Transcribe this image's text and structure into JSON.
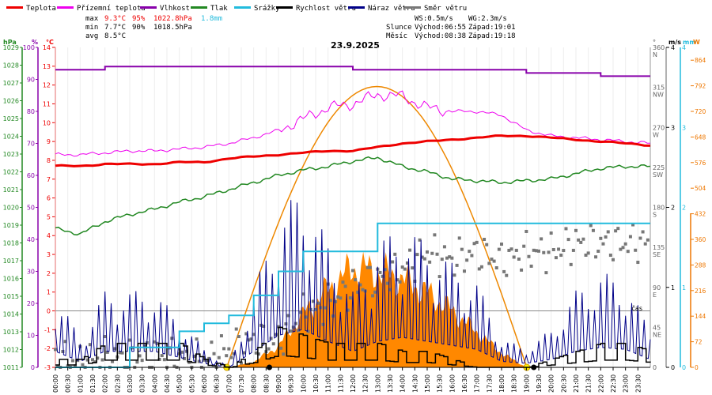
{
  "chart_data": {
    "type": "line",
    "title": "23.9.2025",
    "x_axis": {
      "label": "čas",
      "ticks": [
        "00:00",
        "00:30",
        "01:00",
        "01:30",
        "02:00",
        "02:30",
        "03:00",
        "03:30",
        "04:00",
        "04:30",
        "05:00",
        "05:30",
        "06:00",
        "06:30",
        "07:00",
        "07:30",
        "08:00",
        "08:30",
        "09:00",
        "09:30",
        "10:00",
        "10:30",
        "11:00",
        "11:30",
        "12:00",
        "12:30",
        "13:00",
        "13:30",
        "14:00",
        "14:30",
        "15:00",
        "15:30",
        "16:00",
        "16:30",
        "17:00",
        "17:30",
        "18:00",
        "18:30",
        "19:00",
        "19:30",
        "20:00",
        "20:30",
        "21:00",
        "21:30",
        "22:00",
        "22:30",
        "23:00",
        "23:30"
      ]
    },
    "axes": {
      "pressure": {
        "unit": "hPa",
        "range": [
          1011,
          1029
        ],
        "ticks": [
          1011,
          1012,
          1013,
          1014,
          1015,
          1016,
          1017,
          1018,
          1019,
          1020,
          1021,
          1022,
          1023,
          1024,
          1025,
          1026,
          1027,
          1028,
          1029
        ]
      },
      "humidity": {
        "unit": "%",
        "range": [
          0,
          100
        ],
        "ticks": [
          0,
          10,
          20,
          30,
          40,
          50,
          60,
          70,
          80,
          90,
          100
        ]
      },
      "temperature": {
        "unit": "°C",
        "range": [
          -3,
          14
        ],
        "ticks": [
          -3,
          -2,
          -1,
          0,
          1,
          2,
          3,
          4,
          5,
          6,
          7,
          8,
          9,
          10,
          11,
          12,
          13,
          14
        ]
      },
      "direction": {
        "unit": "°",
        "range": [
          0,
          360
        ],
        "ticks": [
          {
            "deg": "360",
            "dir": "N"
          },
          {
            "deg": "315",
            "dir": "NW"
          },
          {
            "deg": "270",
            "dir": "W"
          },
          {
            "deg": "225",
            "dir": "SW"
          },
          {
            "deg": "180",
            "dir": "S"
          },
          {
            "deg": "135",
            "dir": "SE"
          },
          {
            "deg": "90",
            "dir": "E"
          },
          {
            "deg": "45",
            "dir": "NE"
          },
          {
            "deg": "0",
            "dir": ""
          }
        ]
      },
      "wind": {
        "unit": "m/s",
        "range": [
          0,
          4
        ],
        "ticks": [
          "0",
          "1",
          "2",
          "3",
          "4"
        ]
      },
      "rain": {
        "unit": "mm",
        "range": [
          0,
          4
        ]
      },
      "radiation": {
        "unit": "W",
        "range": [
          0,
          900
        ],
        "ticks": [
          0,
          72,
          144,
          216,
          288,
          360,
          432,
          504,
          576,
          648,
          720,
          792,
          864
        ]
      }
    },
    "legend": [
      {
        "label": "Teplota",
        "color": "#ee0000"
      },
      {
        "label": "Přízemní teplota",
        "color": "#ee00ee"
      },
      {
        "label": "Vlhkost",
        "color": "#8800aa"
      },
      {
        "label": "Tlak",
        "color": "#228822"
      },
      {
        "label": "Srážky",
        "color": "#22bbdd"
      },
      {
        "label": "Rychlost větru",
        "color": "#000000"
      },
      {
        "label": "Náraz větru",
        "color": "#000088"
      },
      {
        "label": "Směr větru",
        "color": "#777777"
      }
    ],
    "stats": {
      "row_labels": [
        "max",
        "min",
        "avg"
      ],
      "temperature": [
        "9.3°C",
        "7.7°C",
        "8.5°C"
      ],
      "humidity": [
        "95%",
        "90%"
      ],
      "pressure": [
        "1022.8hPa",
        "1018.5hPa"
      ],
      "rain": "1.8mm"
    },
    "info": {
      "ws": "WS:0.5m/s",
      "wg": "WG:2.3m/s",
      "sun_label": "Slunce",
      "sun_rise": "Východ:06:55",
      "sun_set": "Západ:19:01",
      "moon_label": "Měsíc",
      "moon_rise": "Východ:08:38",
      "moon_set": "Západ:19:18"
    },
    "series": {
      "hours": [
        0,
        1,
        2,
        3,
        4,
        5,
        6,
        7,
        8,
        9,
        10,
        11,
        12,
        13,
        14,
        15,
        16,
        17,
        18,
        19,
        20,
        21,
        22,
        23,
        24
      ],
      "temperature": [
        7.7,
        7.7,
        7.8,
        7.8,
        7.8,
        7.9,
        7.9,
        8.1,
        8.2,
        8.3,
        8.4,
        8.5,
        8.5,
        8.7,
        8.9,
        9.0,
        9.1,
        9.2,
        9.3,
        9.3,
        9.2,
        9.1,
        9.0,
        8.9,
        8.8
      ],
      "ground_temperature": [
        8.3,
        8.3,
        8.4,
        8.5,
        8.5,
        8.6,
        8.7,
        8.9,
        9.2,
        9.6,
        10.2,
        10.8,
        11.0,
        11.5,
        11.4,
        10.8,
        10.6,
        10.6,
        10.4,
        9.6,
        9.3,
        9.2,
        9.1,
        9.0,
        8.9
      ],
      "humidity": [
        93,
        93,
        94,
        94,
        94,
        94,
        94,
        94,
        94,
        94,
        94,
        94,
        93,
        93,
        93,
        93,
        93,
        93,
        93,
        92,
        92,
        92,
        91,
        91,
        91
      ],
      "pressure": [
        1018.8,
        1018.5,
        1019.2,
        1019.6,
        1019.9,
        1020.3,
        1020.6,
        1021.0,
        1021.4,
        1021.8,
        1022.1,
        1022.3,
        1022.6,
        1022.8,
        1022.3,
        1022.0,
        1021.6,
        1021.5,
        1021.4,
        1021.5,
        1021.6,
        1021.9,
        1022.2,
        1022.3,
        1022.3
      ],
      "rain_cumulative": [
        0.0,
        0.0,
        0.0,
        0.25,
        0.25,
        0.45,
        0.55,
        0.65,
        0.9,
        1.2,
        1.45,
        1.45,
        1.45,
        1.8,
        1.8,
        1.8,
        1.8,
        1.8,
        1.8,
        1.8,
        1.8,
        1.8,
        1.8,
        1.8,
        1.8
      ],
      "wind_speed": [
        0.1,
        0.1,
        0.3,
        0.3,
        0.3,
        0.3,
        0.1,
        0.0,
        0.2,
        0.5,
        0.4,
        0.3,
        0.3,
        0.3,
        0.2,
        0.2,
        0.1,
        0.0,
        0.0,
        0.0,
        0.1,
        0.2,
        0.3,
        0.3,
        0.2
      ],
      "wind_gust": [
        0.8,
        0.3,
        0.8,
        0.8,
        0.8,
        0.5,
        0.2,
        0.0,
        0.8,
        1.6,
        1.9,
        1.3,
        0.8,
        1.3,
        1.5,
        1.3,
        1.1,
        0.9,
        0.3,
        0.2,
        0.4,
        0.8,
        1.0,
        0.9,
        0.4
      ],
      "wind_direction": [
        10,
        5,
        12,
        10,
        15,
        10,
        8,
        20,
        30,
        30,
        60,
        70,
        90,
        100,
        110,
        130,
        120,
        130,
        120,
        130,
        130,
        140,
        140,
        140,
        140
      ],
      "solar_radiation": [
        0,
        0,
        0,
        0,
        0,
        0,
        0,
        0,
        15,
        60,
        150,
        220,
        280,
        270,
        250,
        210,
        160,
        100,
        40,
        0,
        0,
        0,
        0,
        0,
        0
      ],
      "sun_path_peak_w": 790
    }
  }
}
